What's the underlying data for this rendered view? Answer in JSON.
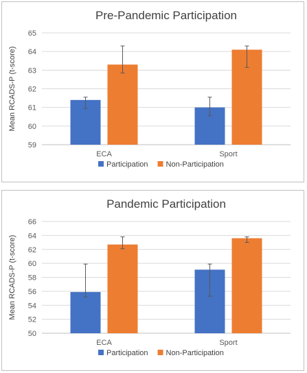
{
  "colors": {
    "participation": "#4472c4",
    "non_participation": "#ed7d31",
    "grid": "#d9d9d9",
    "axis": "#bfbfbf",
    "error_bar": "#595959"
  },
  "chart_data": [
    {
      "type": "bar",
      "title": "Pre-Pandemic Participation",
      "ylabel": "Mean RCADS-P (t-score)",
      "xlabel": "",
      "categories": [
        "ECA",
        "Sport"
      ],
      "ylim": [
        59,
        65
      ],
      "yticks": [
        59,
        60,
        61,
        62,
        63,
        64,
        65
      ],
      "grid": true,
      "legend": "bottom",
      "series": [
        {
          "name": "Participation",
          "values": [
            61.4,
            61.0
          ],
          "error_low": [
            60.95,
            60.55
          ],
          "error_high": [
            61.55,
            61.55
          ]
        },
        {
          "name": "Non-Participation",
          "values": [
            63.3,
            64.1
          ],
          "error_low": [
            62.85,
            63.15
          ],
          "error_high": [
            64.3,
            64.3
          ]
        }
      ]
    },
    {
      "type": "bar",
      "title": "Pandemic Participation",
      "ylabel": "Mean RCADS-P (t-score)",
      "xlabel": "",
      "categories": [
        "ECA",
        "Sport"
      ],
      "ylim": [
        50,
        66
      ],
      "yticks": [
        50,
        52,
        54,
        56,
        58,
        60,
        62,
        64,
        66
      ],
      "grid": true,
      "legend": "bottom",
      "series": [
        {
          "name": "Participation",
          "values": [
            55.9,
            59.1
          ],
          "error_low": [
            55.2,
            55.3
          ],
          "error_high": [
            59.9,
            59.9
          ]
        },
        {
          "name": "Non-Participation",
          "values": [
            62.7,
            63.6
          ],
          "error_low": [
            62.1,
            63.0
          ],
          "error_high": [
            63.8,
            63.8
          ]
        }
      ]
    }
  ]
}
